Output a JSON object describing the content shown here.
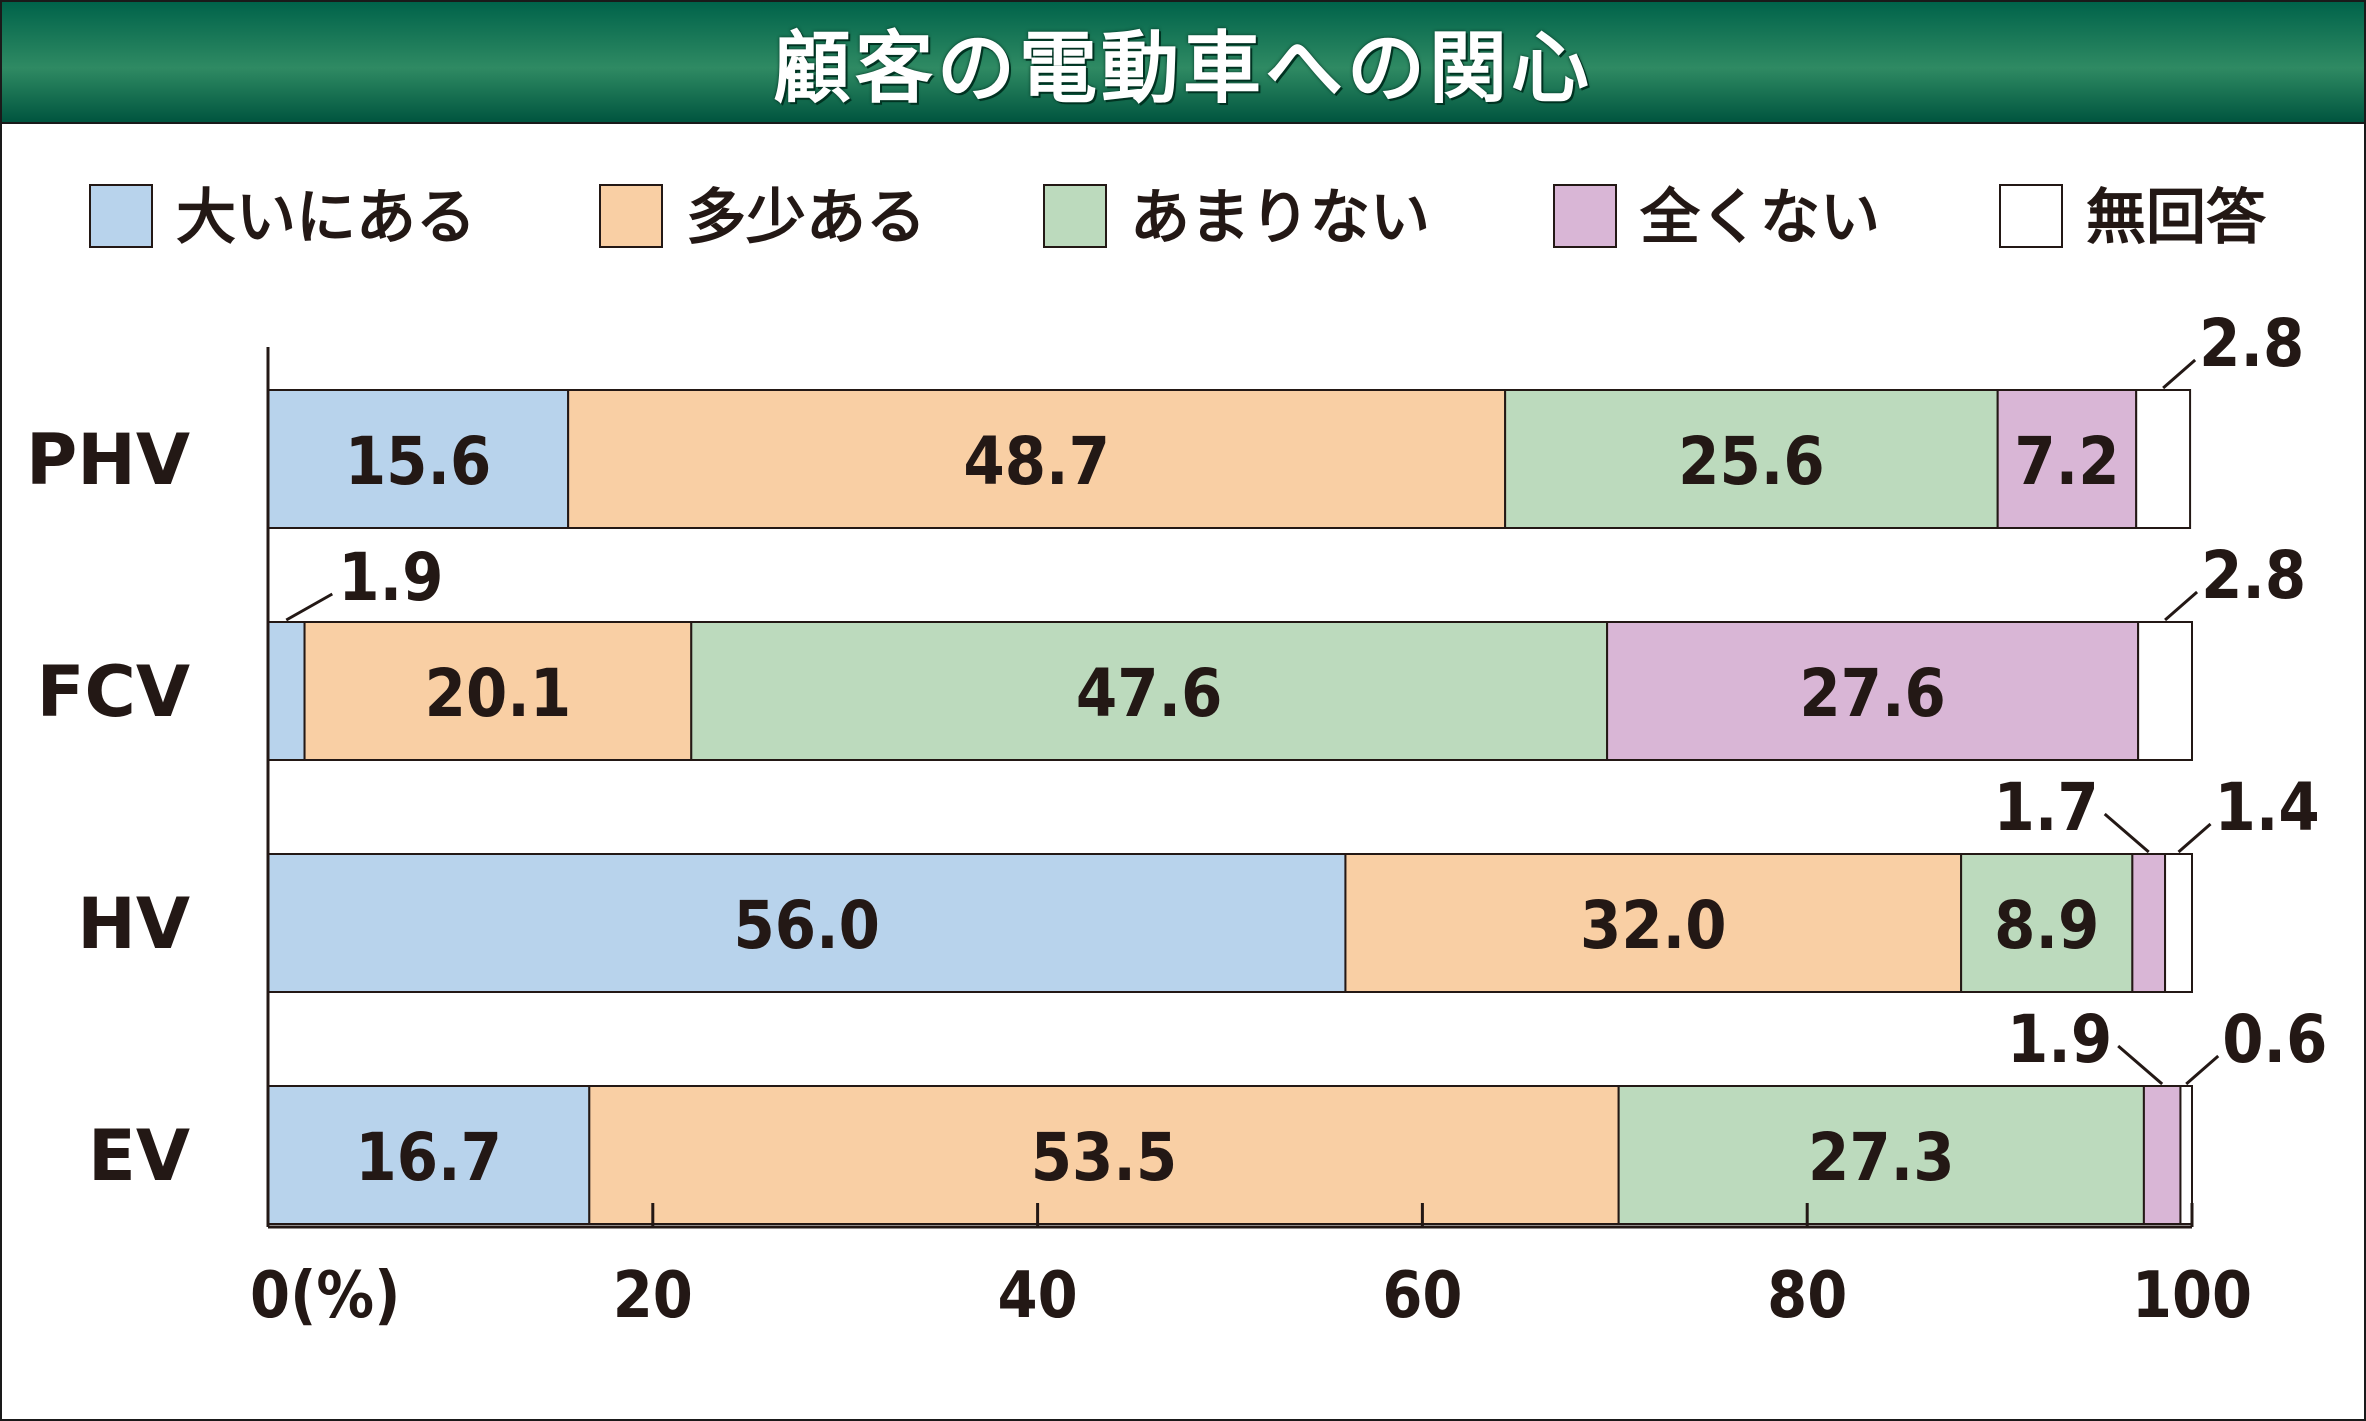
{
  "title": "顧客の電動車への関心",
  "colors": {
    "大いにある": "#b8d3ec",
    "多少ある": "#f9cfa4",
    "あまりない": "#bcdabd",
    "全くない": "#d9b6d6",
    "無回答": "#ffffff",
    "title_bar": "#1f7a56"
  },
  "chart_data": {
    "type": "bar",
    "orientation": "horizontal",
    "stacked": true,
    "title": "顧客の電動車への関心",
    "categories": [
      "PHV",
      "FCV",
      "HV",
      "EV"
    ],
    "series": [
      {
        "name": "大いにある",
        "values": [
          15.6,
          1.9,
          56.0,
          16.7
        ]
      },
      {
        "name": "多少ある",
        "values": [
          48.7,
          20.1,
          32.0,
          53.5
        ]
      },
      {
        "name": "あまりない",
        "values": [
          25.6,
          47.6,
          8.9,
          27.3
        ]
      },
      {
        "name": "全くない",
        "values": [
          7.2,
          27.6,
          1.7,
          1.9
        ]
      },
      {
        "name": "無回答",
        "values": [
          2.8,
          2.8,
          1.4,
          0.6
        ]
      }
    ],
    "data_labels": [
      [
        "15.6",
        "48.7",
        "25.6",
        "7.2",
        "2.8"
      ],
      [
        "1.9",
        "20.1",
        "47.6",
        "27.6",
        "2.8"
      ],
      [
        "56.0",
        "32.0",
        "8.9",
        "1.7",
        "1.4"
      ],
      [
        "16.7",
        "53.5",
        "27.3",
        "1.9",
        "0.6"
      ]
    ],
    "x_ticks": [
      0,
      20,
      40,
      60,
      80,
      100
    ],
    "x_tick_labels": [
      "0(%)",
      "20",
      "40",
      "60",
      "80",
      "100"
    ],
    "xlim": [
      0,
      100
    ],
    "legend_position": "top",
    "grid": false
  }
}
